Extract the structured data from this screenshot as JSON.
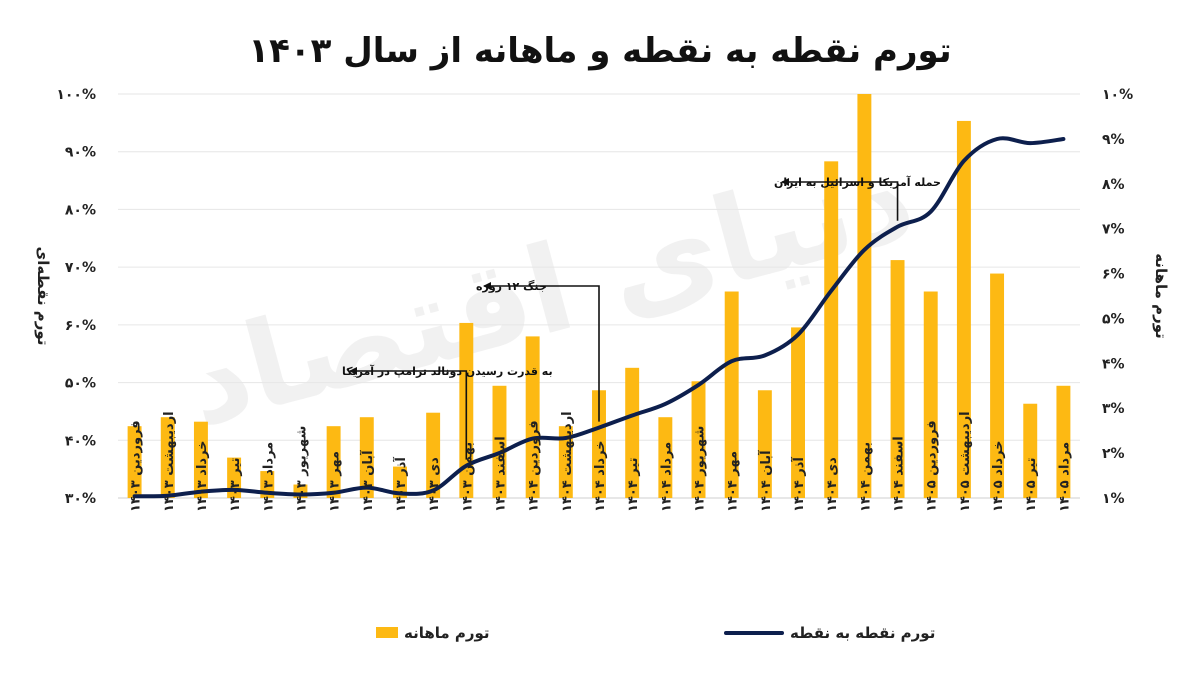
{
  "chart_data": {
    "type": "bar+line",
    "title": "تورم نقطه به نقطه و ماهانه از سال ۱۴۰۳",
    "ylabel_left": "تورم نقطه‌ای",
    "ylabel_right": "تورم ماهانه",
    "left_axis": {
      "min": 30,
      "max": 100,
      "ticks": [
        "۳۰%",
        "۴۰%",
        "۵۰%",
        "۶۰%",
        "۷۰%",
        "۸۰%",
        "۹۰%",
        "۱۰۰%"
      ]
    },
    "right_axis": {
      "min": 1,
      "max": 10,
      "ticks": [
        "۱%",
        "۲%",
        "۳%",
        "۴%",
        "۵%",
        "۶%",
        "۷%",
        "۸%",
        "۹%",
        "۱۰%"
      ]
    },
    "categories": [
      "فروردین ۱۴۰۳",
      "اردیبهشت ۱۴۰۳",
      "خرداد ۱۴۰۳",
      "تیر ۱۴۰۳",
      "مرداد ۱۴۰۳",
      "شهریور ۱۴۰۳",
      "مهر ۱۴۰۳",
      "آبان ۱۴۰۳",
      "آذر ۱۴۰۳",
      "دی ۱۴۰۳",
      "بهمن ۱۴۰۳",
      "اسفند ۱۴۰۳",
      "فروردین ۱۴۰۴",
      "اردیبهشت ۱۴۰۴",
      "خرداد ۱۴۰۴",
      "تیر ۱۴۰۴",
      "مرداد ۱۴۰۴",
      "شهریور ۱۴۰۴",
      "مهر ۱۴۰۴",
      "آبان ۱۴۰۴",
      "آذر ۱۴۰۴",
      "دی ۱۴۰۴",
      "بهمن ۱۴۰۴",
      "اسفند ۱۴۰۴",
      "فروردین ۱۴۰۵",
      "اردیبهشت ۱۴۰۵",
      "خرداد ۱۴۰۵",
      "تیر ۱۴۰۵",
      "مرداد ۱۴۰۵"
    ],
    "series": [
      {
        "name": "تورم ماهانه",
        "axis": "right",
        "kind": "bar",
        "color": "#FDB913",
        "values": [
          2.6,
          2.8,
          2.7,
          1.9,
          1.6,
          1.3,
          2.6,
          2.8,
          1.7,
          2.9,
          4.9,
          3.5,
          4.6,
          2.6,
          3.4,
          3.9,
          2.8,
          3.6,
          5.6,
          3.4,
          4.8,
          8.5,
          10.0,
          6.3,
          5.6,
          9.4,
          6.0,
          3.1,
          3.5
        ]
      },
      {
        "name": "تورم نقطه به نقطه",
        "axis": "left",
        "kind": "line",
        "color": "#0D1F4D",
        "values": [
          30.3,
          30.4,
          31.1,
          31.4,
          30.9,
          30.6,
          30.9,
          31.8,
          30.8,
          31.3,
          35.6,
          37.8,
          40.3,
          40.4,
          42.2,
          44.3,
          46.3,
          49.6,
          53.7,
          54.7,
          58.3,
          65.9,
          73.0,
          77.0,
          79.6,
          88.4,
          92.2,
          91.5,
          92.2
        ]
      }
    ],
    "annotations": [
      {
        "text": "به قدرت رسیدن دونالد ترامپ در آمریکا",
        "index": 10
      },
      {
        "text": "جنگ ۱۲ روزه",
        "index": 14
      },
      {
        "text": "حمله آمریکا و اسرائیل به ایران",
        "index": 23
      }
    ],
    "legend": {
      "placement": "bottom"
    },
    "grid": true
  },
  "watermark": "دنیای اقتصاد"
}
